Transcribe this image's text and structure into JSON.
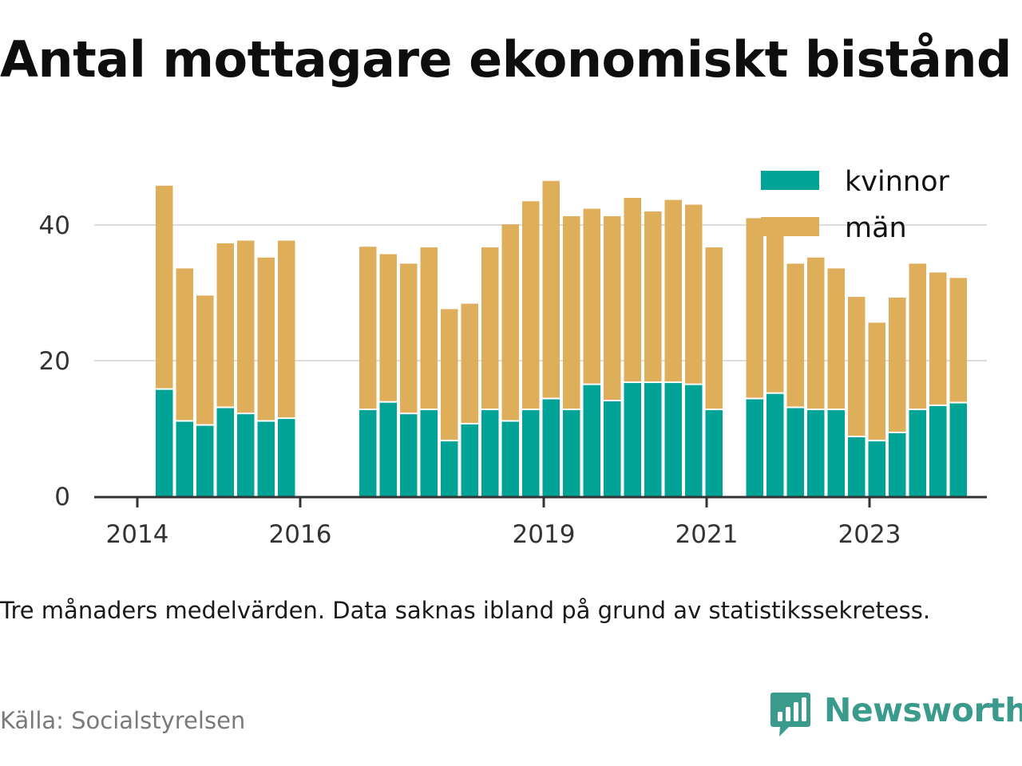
{
  "title": "Antal mottagare ekonomiskt bistånd",
  "caption": "Tre månaders medelvärden. Data saknas ibland på grund av statistikssekretess.",
  "source": "Källa: Socialstyrelsen",
  "logo": {
    "text": "Newsworthy"
  },
  "colors": {
    "kvinnor": "#00a396",
    "man": "#deae5a",
    "grid": "#dddddd",
    "axis": "#333333",
    "logo": "#3a9a8c"
  },
  "chart_data": {
    "type": "bar",
    "stacked": true,
    "x_ticks": [
      "2014",
      "2016",
      "2019",
      "2021",
      "2023"
    ],
    "y_ticks": [
      "0",
      "20",
      "40"
    ],
    "ylim": [
      0,
      50
    ],
    "grid": true,
    "legend_position": "top-right",
    "series": [
      {
        "name": "kvinnor",
        "values": [
          15.7,
          11.0,
          10.4,
          13.0,
          12.1,
          11.0,
          11.4,
          null,
          null,
          null,
          12.7,
          13.8,
          12.1,
          12.7,
          8.1,
          10.6,
          12.7,
          11.0,
          12.7,
          14.3,
          12.7,
          16.4,
          14.0,
          16.7,
          16.7,
          16.7,
          16.4,
          12.7,
          null,
          14.3,
          15.1,
          13.0,
          12.7,
          12.7,
          8.7,
          8.1,
          9.3,
          12.7,
          13.3,
          13.7
        ]
      },
      {
        "name": "män",
        "values": [
          30.1,
          22.6,
          19.2,
          24.3,
          25.6,
          24.2,
          26.3,
          null,
          null,
          null,
          24.1,
          21.9,
          22.2,
          24.0,
          19.5,
          17.8,
          24.0,
          29.1,
          30.8,
          32.2,
          28.6,
          26.0,
          27.3,
          27.3,
          25.3,
          27.0,
          26.6,
          24.0,
          null,
          26.7,
          24.7,
          21.3,
          22.5,
          20.9,
          20.7,
          17.5,
          20.0,
          21.6,
          19.7,
          18.5
        ]
      }
    ]
  }
}
